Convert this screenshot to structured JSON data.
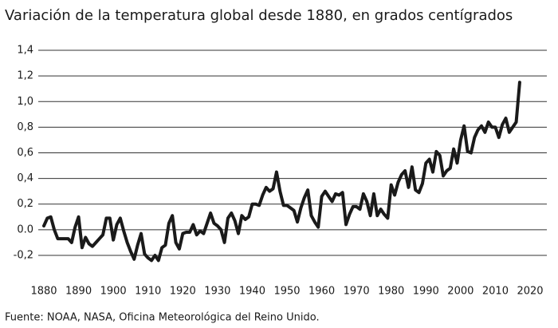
{
  "chart_data": {
    "type": "line",
    "title": "Variación de la temperatura global desde 1880, en grados centígrados",
    "source": "Fuente: NOAA, NASA, Oficina Meteorológica del Reino Unido.",
    "color": "#1a1a1a",
    "grid": true,
    "xlim": [
      1880,
      2020
    ],
    "xticks": [
      1880,
      1890,
      1900,
      1910,
      1920,
      1930,
      1940,
      1950,
      1960,
      1970,
      1980,
      1990,
      2000,
      2010,
      2020
    ],
    "ylim": [
      -0.3,
      1.5
    ],
    "yticks": [
      {
        "value": -0.2,
        "label": "-0,2"
      },
      {
        "value": 0,
        "label": "0.0"
      },
      {
        "value": 0.2,
        "label": "0,2"
      },
      {
        "value": 0.4,
        "label": "0,4"
      },
      {
        "value": 0.6,
        "label": "0,6"
      },
      {
        "value": 0.8,
        "label": "0,8"
      },
      {
        "value": 1.0,
        "label": "1,0"
      },
      {
        "value": 1.2,
        "label": "1,2"
      },
      {
        "value": 1.4,
        "label": "1,4"
      }
    ],
    "x": [
      1880,
      1881,
      1882,
      1883,
      1884,
      1885,
      1886,
      1887,
      1888,
      1889,
      1890,
      1891,
      1892,
      1893,
      1894,
      1895,
      1896,
      1897,
      1898,
      1899,
      1900,
      1901,
      1902,
      1903,
      1904,
      1905,
      1906,
      1907,
      1908,
      1909,
      1910,
      1911,
      1912,
      1913,
      1914,
      1915,
      1916,
      1917,
      1918,
      1919,
      1920,
      1921,
      1922,
      1923,
      1924,
      1925,
      1926,
      1927,
      1928,
      1929,
      1930,
      1931,
      1932,
      1933,
      1934,
      1935,
      1936,
      1937,
      1938,
      1939,
      1940,
      1941,
      1942,
      1943,
      1944,
      1945,
      1946,
      1947,
      1948,
      1949,
      1950,
      1951,
      1952,
      1953,
      1954,
      1955,
      1956,
      1957,
      1958,
      1959,
      1960,
      1961,
      1962,
      1963,
      1964,
      1965,
      1966,
      1967,
      1968,
      1969,
      1970,
      1971,
      1972,
      1973,
      1974,
      1975,
      1976,
      1977,
      1978,
      1979,
      1980,
      1981,
      1982,
      1983,
      1984,
      1985,
      1986,
      1987,
      1988,
      1989,
      1990,
      1991,
      1992,
      1993,
      1994,
      1995,
      1996,
      1997,
      1998,
      1999,
      2000,
      2001,
      2002,
      2003,
      2004,
      2005,
      2006,
      2007,
      2008,
      2009,
      2010,
      2011,
      2012,
      2013,
      2014,
      2015,
      2016,
      2017
    ],
    "values": [
      0.03,
      0.09,
      0.1,
      0.0,
      -0.07,
      -0.07,
      -0.07,
      -0.07,
      -0.1,
      0.02,
      0.1,
      -0.14,
      -0.06,
      -0.11,
      -0.13,
      -0.1,
      -0.07,
      -0.04,
      0.09,
      0.09,
      -0.08,
      0.04,
      0.09,
      -0.01,
      -0.1,
      -0.17,
      -0.23,
      -0.12,
      -0.03,
      -0.19,
      -0.22,
      -0.24,
      -0.2,
      -0.24,
      -0.14,
      -0.12,
      0.05,
      0.11,
      -0.1,
      -0.15,
      -0.03,
      -0.02,
      -0.02,
      0.04,
      -0.04,
      -0.01,
      -0.03,
      0.05,
      0.13,
      0.05,
      0.03,
      0.0,
      -0.1,
      0.09,
      0.13,
      0.07,
      -0.03,
      0.11,
      0.08,
      0.1,
      0.2,
      0.2,
      0.19,
      0.27,
      0.33,
      0.3,
      0.32,
      0.45,
      0.3,
      0.19,
      0.19,
      0.17,
      0.15,
      0.06,
      0.17,
      0.25,
      0.31,
      0.11,
      0.06,
      0.02,
      0.26,
      0.3,
      0.26,
      0.22,
      0.28,
      0.27,
      0.29,
      0.04,
      0.12,
      0.18,
      0.18,
      0.16,
      0.28,
      0.22,
      0.11,
      0.28,
      0.11,
      0.16,
      0.12,
      0.09,
      0.35,
      0.27,
      0.37,
      0.43,
      0.46,
      0.33,
      0.49,
      0.31,
      0.29,
      0.36,
      0.52,
      0.55,
      0.45,
      0.61,
      0.58,
      0.42,
      0.46,
      0.48,
      0.63,
      0.52,
      0.7,
      0.81,
      0.61,
      0.6,
      0.72,
      0.78,
      0.81,
      0.76,
      0.84,
      0.8,
      0.8,
      0.72,
      0.82,
      0.87,
      0.76,
      0.8,
      0.84,
      1.15
    ]
  }
}
